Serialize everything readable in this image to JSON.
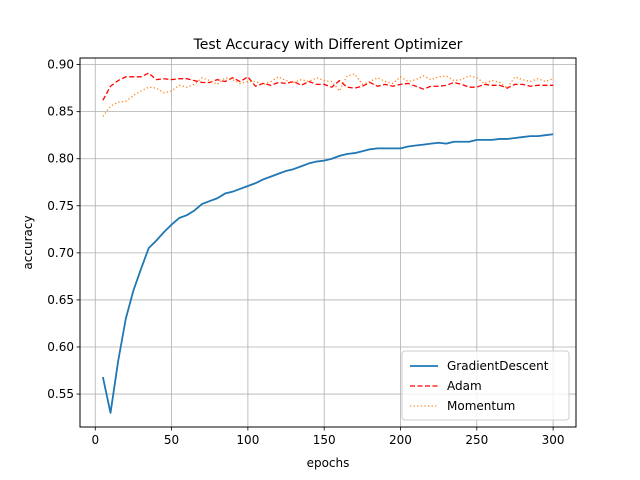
{
  "chart_data": {
    "type": "line",
    "title": "Test Accuracy with Different Optimizer",
    "xlabel": "epochs",
    "ylabel": "accuracy",
    "xlim": [
      -10,
      315
    ],
    "ylim": [
      0.515,
      0.907
    ],
    "xticks": [
      0,
      50,
      100,
      150,
      200,
      250,
      300
    ],
    "yticks": [
      0.55,
      0.6,
      0.65,
      0.7,
      0.75,
      0.8,
      0.85,
      0.9
    ],
    "grid": true,
    "legend_position": "bottom-right",
    "x": [
      5,
      10,
      15,
      20,
      25,
      30,
      35,
      40,
      45,
      50,
      55,
      60,
      65,
      70,
      75,
      80,
      85,
      90,
      95,
      100,
      105,
      110,
      115,
      120,
      125,
      130,
      135,
      140,
      145,
      150,
      155,
      160,
      165,
      170,
      175,
      180,
      185,
      190,
      195,
      200,
      205,
      210,
      215,
      220,
      225,
      230,
      235,
      240,
      245,
      250,
      255,
      260,
      265,
      270,
      275,
      280,
      285,
      290,
      295,
      300
    ],
    "series": [
      {
        "name": "GradientDescent",
        "color": "#1f77b4",
        "style": "solid",
        "values": [
          0.568,
          0.53,
          0.585,
          0.63,
          0.66,
          0.683,
          0.705,
          0.713,
          0.722,
          0.73,
          0.737,
          0.74,
          0.745,
          0.752,
          0.755,
          0.758,
          0.763,
          0.765,
          0.768,
          0.771,
          0.774,
          0.778,
          0.781,
          0.784,
          0.787,
          0.789,
          0.792,
          0.795,
          0.797,
          0.798,
          0.8,
          0.803,
          0.805,
          0.806,
          0.808,
          0.81,
          0.811,
          0.811,
          0.811,
          0.811,
          0.813,
          0.814,
          0.815,
          0.816,
          0.817,
          0.816,
          0.818,
          0.818,
          0.818,
          0.82,
          0.82,
          0.82,
          0.821,
          0.821,
          0.822,
          0.823,
          0.824,
          0.824,
          0.825,
          0.826
        ]
      },
      {
        "name": "Adam",
        "color": "#ff0000",
        "style": "dashed",
        "values": [
          0.862,
          0.877,
          0.883,
          0.887,
          0.887,
          0.887,
          0.891,
          0.884,
          0.885,
          0.884,
          0.885,
          0.885,
          0.883,
          0.881,
          0.881,
          0.884,
          0.882,
          0.886,
          0.882,
          0.887,
          0.877,
          0.88,
          0.878,
          0.881,
          0.88,
          0.882,
          0.878,
          0.882,
          0.879,
          0.879,
          0.876,
          0.883,
          0.876,
          0.875,
          0.877,
          0.881,
          0.877,
          0.879,
          0.877,
          0.879,
          0.88,
          0.877,
          0.874,
          0.877,
          0.877,
          0.878,
          0.881,
          0.879,
          0.876,
          0.876,
          0.879,
          0.878,
          0.878,
          0.875,
          0.879,
          0.879,
          0.877,
          0.878,
          0.878,
          0.878
        ]
      },
      {
        "name": "Momentum",
        "color": "#ff7f0e",
        "style": "dotted",
        "values": [
          0.845,
          0.856,
          0.86,
          0.861,
          0.867,
          0.872,
          0.876,
          0.875,
          0.87,
          0.872,
          0.878,
          0.876,
          0.879,
          0.886,
          0.883,
          0.879,
          0.886,
          0.884,
          0.88,
          0.882,
          0.882,
          0.879,
          0.882,
          0.887,
          0.883,
          0.881,
          0.884,
          0.882,
          0.886,
          0.883,
          0.882,
          0.872,
          0.888,
          0.89,
          0.879,
          0.882,
          0.886,
          0.882,
          0.88,
          0.887,
          0.882,
          0.884,
          0.888,
          0.884,
          0.887,
          0.888,
          0.883,
          0.884,
          0.888,
          0.886,
          0.88,
          0.883,
          0.881,
          0.875,
          0.887,
          0.884,
          0.882,
          0.885,
          0.882,
          0.885
        ]
      }
    ]
  }
}
